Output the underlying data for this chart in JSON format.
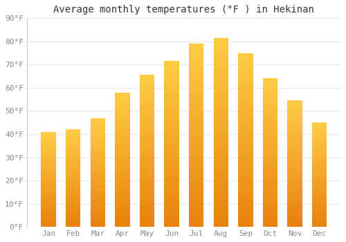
{
  "title": "Average monthly temperatures (°F ) in Hekinan",
  "months": [
    "Jan",
    "Feb",
    "Mar",
    "Apr",
    "May",
    "Jun",
    "Jul",
    "Aug",
    "Sep",
    "Oct",
    "Nov",
    "Dec"
  ],
  "values": [
    41.0,
    42.0,
    47.0,
    58.0,
    65.5,
    71.5,
    79.0,
    81.5,
    75.0,
    64.0,
    54.5,
    45.0
  ],
  "bar_color_bottom": "#E8820A",
  "bar_color_top": "#FFCC44",
  "ylim": [
    0,
    90
  ],
  "yticks": [
    0,
    10,
    20,
    30,
    40,
    50,
    60,
    70,
    80,
    90
  ],
  "ytick_labels": [
    "0°F",
    "10°F",
    "20°F",
    "30°F",
    "40°F",
    "50°F",
    "60°F",
    "70°F",
    "80°F",
    "90°F"
  ],
  "background_color": "#ffffff",
  "grid_color": "#e8e8e8",
  "title_fontsize": 10,
  "tick_fontsize": 8,
  "bar_width": 0.6
}
